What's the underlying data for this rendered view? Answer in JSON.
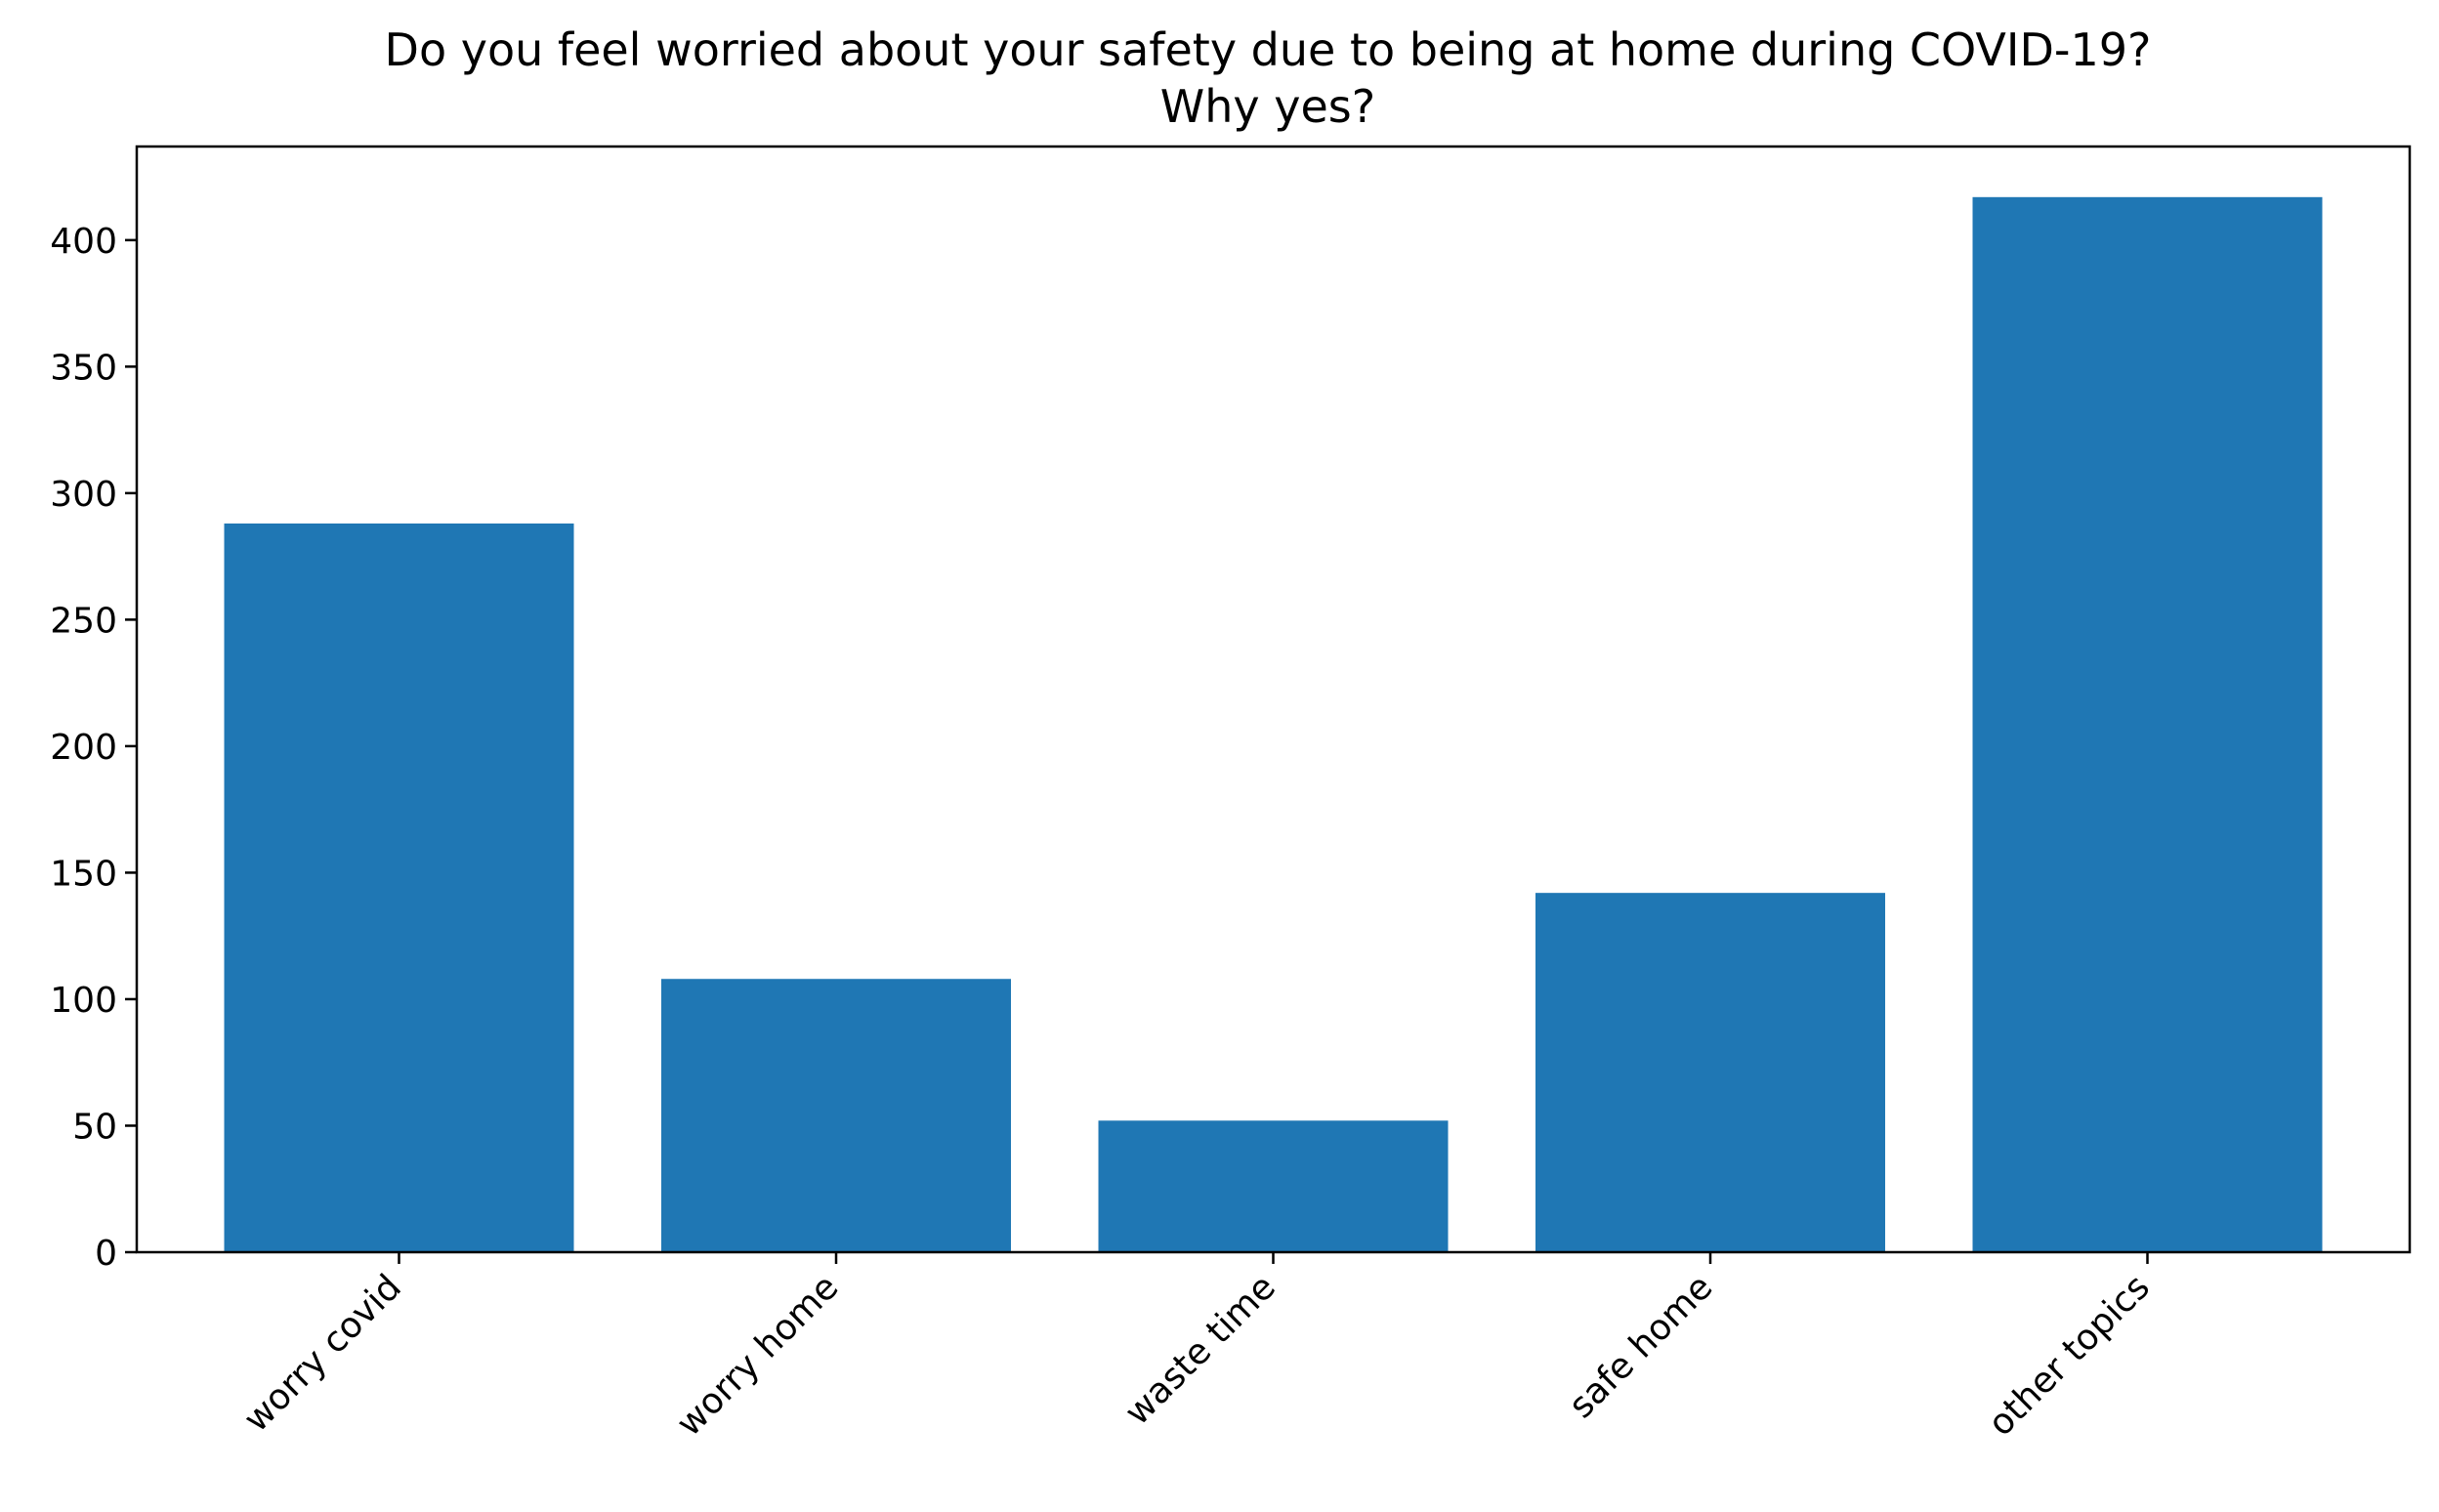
{
  "chart_data": {
    "type": "bar",
    "title": "Do you feel worried about your safety due to being at home during COVID-19?",
    "subtitle": "Why yes?",
    "xlabel": "",
    "ylabel": "",
    "categories": [
      "worry covid",
      "worry home",
      "waste time",
      "safe home",
      "other topics"
    ],
    "values": [
      288,
      108,
      52,
      142,
      417
    ],
    "ylim": [
      0,
      437
    ],
    "yticks": [
      0,
      50,
      100,
      150,
      200,
      250,
      300,
      350,
      400
    ],
    "ytick_labels": [
      "0",
      "50",
      "100",
      "150",
      "200",
      "250",
      "300",
      "350",
      "400"
    ],
    "bar_color": "#1f77b4",
    "grid": false,
    "legend": "none",
    "xtick_rotation": "45 degrees"
  }
}
